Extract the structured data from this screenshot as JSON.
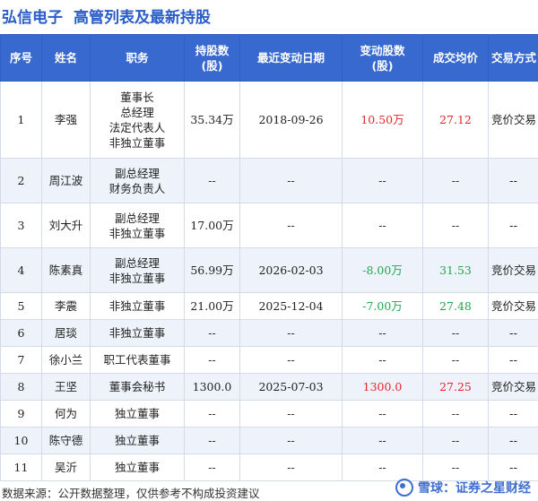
{
  "title": {
    "company": "弘信电子",
    "text": "高管列表及最新持股"
  },
  "table": {
    "headers": [
      "序号",
      "姓名",
      "职务",
      "持股数|(股)",
      "最近变动日期",
      "变动股数|(股)",
      "成交均价",
      "交易方式"
    ],
    "rows": [
      {
        "no": "1",
        "name": "李强",
        "roles": [
          "董事长",
          "总经理",
          "法定代表人",
          "非独立董事"
        ],
        "shares": "35.34万",
        "date": "2018-09-26",
        "change": "10.50万",
        "change_dir": "pos",
        "price": "27.12",
        "price_dir": "pos",
        "method": "竞价交易"
      },
      {
        "no": "2",
        "name": "周江波",
        "roles": [
          "副总经理",
          "财务负责人"
        ],
        "shares": "--",
        "date": "--",
        "change": "--",
        "change_dir": "none",
        "price": "--",
        "price_dir": "none",
        "method": "--"
      },
      {
        "no": "3",
        "name": "刘大升",
        "roles": [
          "副总经理",
          "非独立董事"
        ],
        "shares": "17.00万",
        "date": "--",
        "change": "--",
        "change_dir": "none",
        "price": "--",
        "price_dir": "none",
        "method": "--"
      },
      {
        "no": "4",
        "name": "陈素真",
        "roles": [
          "副总经理",
          "非独立董事"
        ],
        "shares": "56.99万",
        "date": "2026-02-03",
        "change": "-8.00万",
        "change_dir": "neg",
        "price": "31.53",
        "price_dir": "neg",
        "method": "竞价交易"
      },
      {
        "no": "5",
        "name": "李震",
        "roles": [
          "非独立董事"
        ],
        "shares": "21.00万",
        "date": "2025-12-04",
        "change": "-7.00万",
        "change_dir": "neg",
        "price": "27.48",
        "price_dir": "neg",
        "method": "竞价交易"
      },
      {
        "no": "6",
        "name": "居琰",
        "roles": [
          "非独立董事"
        ],
        "shares": "--",
        "date": "--",
        "change": "--",
        "change_dir": "none",
        "price": "--",
        "price_dir": "none",
        "method": "--"
      },
      {
        "no": "7",
        "name": "徐小兰",
        "roles": [
          "职工代表董事"
        ],
        "shares": "--",
        "date": "--",
        "change": "--",
        "change_dir": "none",
        "price": "--",
        "price_dir": "none",
        "method": "--"
      },
      {
        "no": "8",
        "name": "王坚",
        "roles": [
          "董事会秘书"
        ],
        "shares": "1300.0",
        "date": "2025-07-03",
        "change": "1300.0",
        "change_dir": "pos",
        "price": "27.25",
        "price_dir": "pos",
        "method": "竞价交易"
      },
      {
        "no": "9",
        "name": "何为",
        "roles": [
          "独立董事"
        ],
        "shares": "--",
        "date": "--",
        "change": "--",
        "change_dir": "none",
        "price": "--",
        "price_dir": "none",
        "method": "--"
      },
      {
        "no": "10",
        "name": "陈守德",
        "roles": [
          "独立董事"
        ],
        "shares": "--",
        "date": "--",
        "change": "--",
        "change_dir": "none",
        "price": "--",
        "price_dir": "none",
        "method": "--"
      },
      {
        "no": "11",
        "name": "吴沂",
        "roles": [
          "独立董事"
        ],
        "shares": "--",
        "date": "--",
        "change": "--",
        "change_dir": "none",
        "price": "--",
        "price_dir": "none",
        "method": "--"
      }
    ]
  },
  "footer": {
    "source": "数据来源：公开数据整理，仅供参考不构成投资建议"
  },
  "brand": {
    "text": "雪球：证券之星财经",
    "icon": "snowball-logo-icon"
  },
  "colors": {
    "header_bg": "#3769cf",
    "title": "#2a5cc9",
    "positive": "#e4262c",
    "negative": "#20a84a"
  },
  "watermark": {
    "text": "证券之星"
  }
}
